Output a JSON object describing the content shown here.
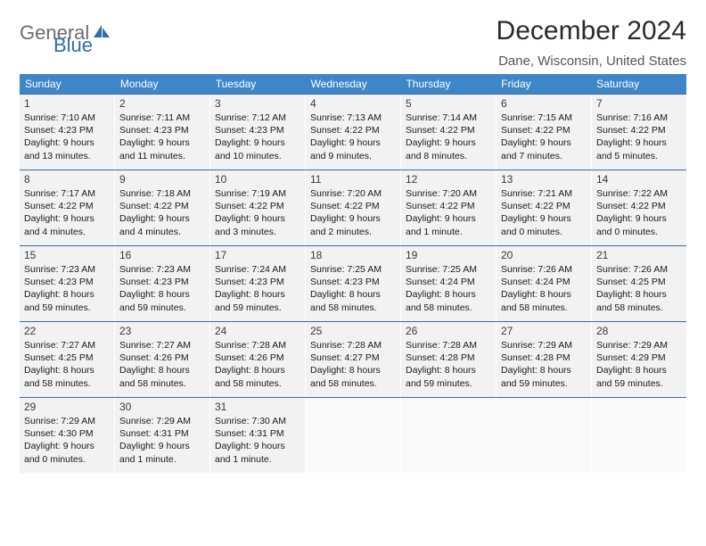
{
  "logo": {
    "text1": "General",
    "text2": "Blue"
  },
  "title": "December 2024",
  "location": "Dane, Wisconsin, United States",
  "colors": {
    "header_bg": "#3f86c8",
    "header_text": "#ffffff",
    "row_border": "#3f6d9b",
    "cell_bg": "#f2f2f2",
    "empty_bg": "#fafafa",
    "logo_gray": "#6b6b6b",
    "logo_blue": "#2f6fa8"
  },
  "day_headers": [
    "Sunday",
    "Monday",
    "Tuesday",
    "Wednesday",
    "Thursday",
    "Friday",
    "Saturday"
  ],
  "weeks": [
    [
      {
        "n": "1",
        "sunrise": "7:10 AM",
        "sunset": "4:23 PM",
        "daylight": "9 hours and 13 minutes."
      },
      {
        "n": "2",
        "sunrise": "7:11 AM",
        "sunset": "4:23 PM",
        "daylight": "9 hours and 11 minutes."
      },
      {
        "n": "3",
        "sunrise": "7:12 AM",
        "sunset": "4:23 PM",
        "daylight": "9 hours and 10 minutes."
      },
      {
        "n": "4",
        "sunrise": "7:13 AM",
        "sunset": "4:22 PM",
        "daylight": "9 hours and 9 minutes."
      },
      {
        "n": "5",
        "sunrise": "7:14 AM",
        "sunset": "4:22 PM",
        "daylight": "9 hours and 8 minutes."
      },
      {
        "n": "6",
        "sunrise": "7:15 AM",
        "sunset": "4:22 PM",
        "daylight": "9 hours and 7 minutes."
      },
      {
        "n": "7",
        "sunrise": "7:16 AM",
        "sunset": "4:22 PM",
        "daylight": "9 hours and 5 minutes."
      }
    ],
    [
      {
        "n": "8",
        "sunrise": "7:17 AM",
        "sunset": "4:22 PM",
        "daylight": "9 hours and 4 minutes."
      },
      {
        "n": "9",
        "sunrise": "7:18 AM",
        "sunset": "4:22 PM",
        "daylight": "9 hours and 4 minutes."
      },
      {
        "n": "10",
        "sunrise": "7:19 AM",
        "sunset": "4:22 PM",
        "daylight": "9 hours and 3 minutes."
      },
      {
        "n": "11",
        "sunrise": "7:20 AM",
        "sunset": "4:22 PM",
        "daylight": "9 hours and 2 minutes."
      },
      {
        "n": "12",
        "sunrise": "7:20 AM",
        "sunset": "4:22 PM",
        "daylight": "9 hours and 1 minute."
      },
      {
        "n": "13",
        "sunrise": "7:21 AM",
        "sunset": "4:22 PM",
        "daylight": "9 hours and 0 minutes."
      },
      {
        "n": "14",
        "sunrise": "7:22 AM",
        "sunset": "4:22 PM",
        "daylight": "9 hours and 0 minutes."
      }
    ],
    [
      {
        "n": "15",
        "sunrise": "7:23 AM",
        "sunset": "4:23 PM",
        "daylight": "8 hours and 59 minutes."
      },
      {
        "n": "16",
        "sunrise": "7:23 AM",
        "sunset": "4:23 PM",
        "daylight": "8 hours and 59 minutes."
      },
      {
        "n": "17",
        "sunrise": "7:24 AM",
        "sunset": "4:23 PM",
        "daylight": "8 hours and 59 minutes."
      },
      {
        "n": "18",
        "sunrise": "7:25 AM",
        "sunset": "4:23 PM",
        "daylight": "8 hours and 58 minutes."
      },
      {
        "n": "19",
        "sunrise": "7:25 AM",
        "sunset": "4:24 PM",
        "daylight": "8 hours and 58 minutes."
      },
      {
        "n": "20",
        "sunrise": "7:26 AM",
        "sunset": "4:24 PM",
        "daylight": "8 hours and 58 minutes."
      },
      {
        "n": "21",
        "sunrise": "7:26 AM",
        "sunset": "4:25 PM",
        "daylight": "8 hours and 58 minutes."
      }
    ],
    [
      {
        "n": "22",
        "sunrise": "7:27 AM",
        "sunset": "4:25 PM",
        "daylight": "8 hours and 58 minutes."
      },
      {
        "n": "23",
        "sunrise": "7:27 AM",
        "sunset": "4:26 PM",
        "daylight": "8 hours and 58 minutes."
      },
      {
        "n": "24",
        "sunrise": "7:28 AM",
        "sunset": "4:26 PM",
        "daylight": "8 hours and 58 minutes."
      },
      {
        "n": "25",
        "sunrise": "7:28 AM",
        "sunset": "4:27 PM",
        "daylight": "8 hours and 58 minutes."
      },
      {
        "n": "26",
        "sunrise": "7:28 AM",
        "sunset": "4:28 PM",
        "daylight": "8 hours and 59 minutes."
      },
      {
        "n": "27",
        "sunrise": "7:29 AM",
        "sunset": "4:28 PM",
        "daylight": "8 hours and 59 minutes."
      },
      {
        "n": "28",
        "sunrise": "7:29 AM",
        "sunset": "4:29 PM",
        "daylight": "8 hours and 59 minutes."
      }
    ],
    [
      {
        "n": "29",
        "sunrise": "7:29 AM",
        "sunset": "4:30 PM",
        "daylight": "9 hours and 0 minutes."
      },
      {
        "n": "30",
        "sunrise": "7:29 AM",
        "sunset": "4:31 PM",
        "daylight": "9 hours and 1 minute."
      },
      {
        "n": "31",
        "sunrise": "7:30 AM",
        "sunset": "4:31 PM",
        "daylight": "9 hours and 1 minute."
      },
      null,
      null,
      null,
      null
    ]
  ]
}
